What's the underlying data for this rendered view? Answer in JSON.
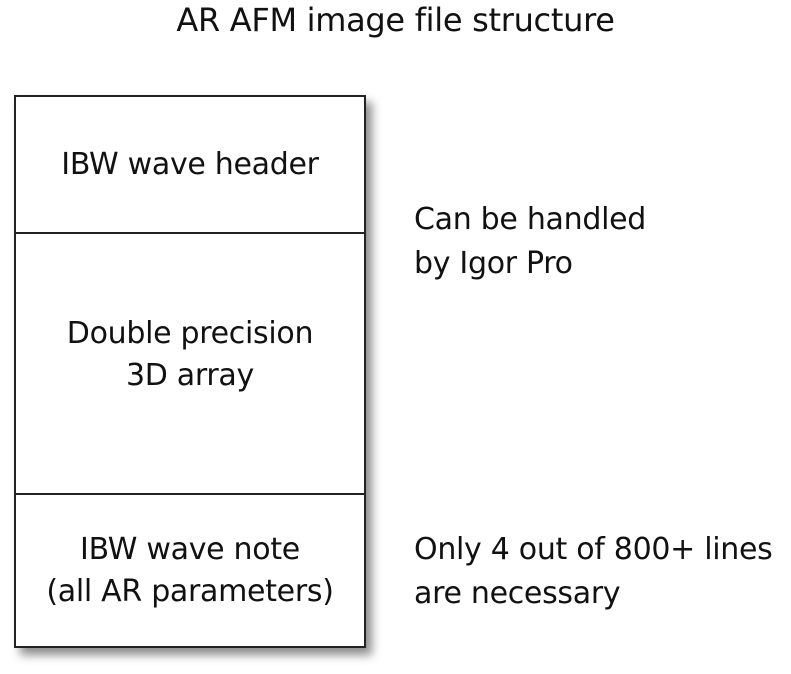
{
  "title": "AR AFM image file structure",
  "stack": {
    "sections": [
      {
        "lines": [
          "IBW wave header"
        ]
      },
      {
        "lines": [
          "Double precision",
          "3D array"
        ]
      },
      {
        "lines": [
          "IBW wave note",
          "(all AR parameters)"
        ]
      }
    ]
  },
  "annotations": [
    {
      "lines": [
        "Can be handled",
        "by Igor Pro"
      ]
    },
    {
      "lines": [
        "Only 4 out of 800+ lines",
        "are necessary"
      ]
    }
  ]
}
